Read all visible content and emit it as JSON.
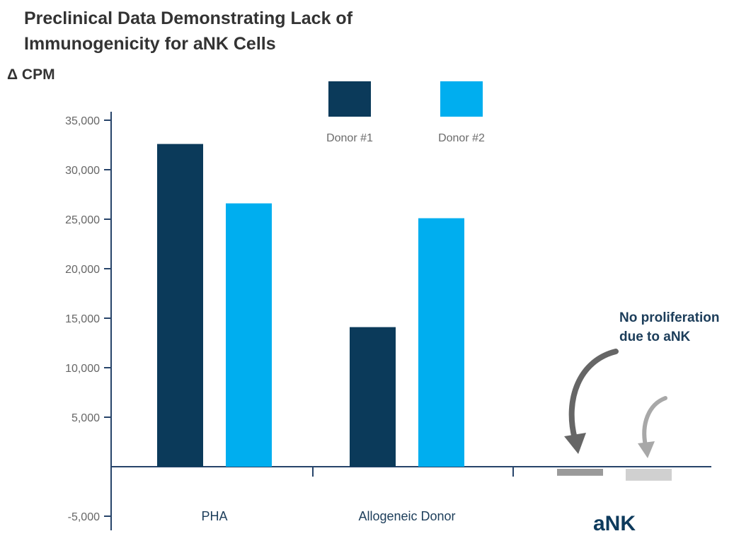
{
  "title_line1": "Preclinical Data Demonstrating Lack of",
  "title_line2": "Immunogenicity for aNK Cells",
  "chart_data": {
    "type": "bar",
    "ylabel": "Δ CPM",
    "ylim": [
      -6000,
      35500
    ],
    "yticks": [
      {
        "value": 35000,
        "label": "35,000"
      },
      {
        "value": 30000,
        "label": "30,000"
      },
      {
        "value": 25000,
        "label": "25,000"
      },
      {
        "value": 20000,
        "label": "20,000"
      },
      {
        "value": 15000,
        "label": "15,000"
      },
      {
        "value": 10000,
        "label": "10,000"
      },
      {
        "value": 5000,
        "label": "5,000"
      },
      {
        "value": -5000,
        "label": "-5,000"
      }
    ],
    "categories": [
      "PHA",
      "Allogeneic Donor",
      "aNK"
    ],
    "series": [
      {
        "name": "Donor #1",
        "color": "#0b3a5a",
        "values": [
          32600,
          14100,
          -700
        ]
      },
      {
        "name": "Donor #2",
        "color": "#00aeef",
        "values": [
          26600,
          25100,
          -1200
        ]
      }
    ],
    "anK_bar_colors": [
      "#9a9a9a",
      "#d0d0d0"
    ],
    "annotation": [
      "No proliferation",
      "due to aNK"
    ],
    "grid": false,
    "legend_position": "top-center"
  }
}
